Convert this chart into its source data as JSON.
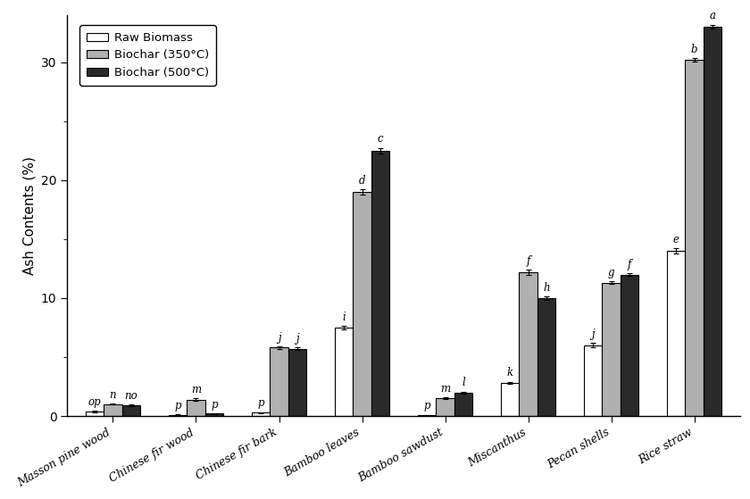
{
  "categories": [
    "Masson pine wood",
    "Chinese fir wood",
    "Chinese fir bark",
    "Bamboo leaves",
    "Bamboo sawdust",
    "Miscanthus",
    "Pecan shells",
    "Rice straw"
  ],
  "raw_biomass": [
    0.38,
    0.1,
    0.28,
    7.5,
    0.08,
    2.8,
    6.0,
    14.0
  ],
  "biochar_350": [
    1.0,
    1.4,
    5.8,
    19.0,
    1.5,
    12.2,
    11.3,
    30.2
  ],
  "biochar_500": [
    0.9,
    0.2,
    5.7,
    22.5,
    2.0,
    10.0,
    12.0,
    33.0
  ],
  "raw_err": [
    0.05,
    0.02,
    0.04,
    0.15,
    0.02,
    0.1,
    0.2,
    0.2
  ],
  "biochar_350_err": [
    0.05,
    0.08,
    0.12,
    0.2,
    0.06,
    0.2,
    0.1,
    0.15
  ],
  "biochar_500_err": [
    0.05,
    0.03,
    0.1,
    0.25,
    0.07,
    0.15,
    0.12,
    0.18
  ],
  "color_raw": "#ffffff",
  "color_350": "#b0b0b0",
  "color_500": "#2a2a2a",
  "bar_edge": "#000000",
  "ylabel": "Ash Contents (%)",
  "ylim": [
    0,
    34
  ],
  "yticks": [
    0,
    10,
    20,
    30
  ],
  "legend_labels": [
    "Raw Biomass",
    "Biochar (350°C)",
    "Biochar (500°C)"
  ],
  "letter_labels_raw": [
    "op",
    "p",
    "p",
    "i",
    "p",
    "k",
    "j",
    "e"
  ],
  "letter_labels_350": [
    "n",
    "m",
    "j",
    "d",
    "m",
    "f",
    "g",
    "b"
  ],
  "letter_labels_500": [
    "no",
    "p",
    "j",
    "c",
    "l",
    "h",
    "f",
    "a"
  ],
  "bar_width": 0.22
}
